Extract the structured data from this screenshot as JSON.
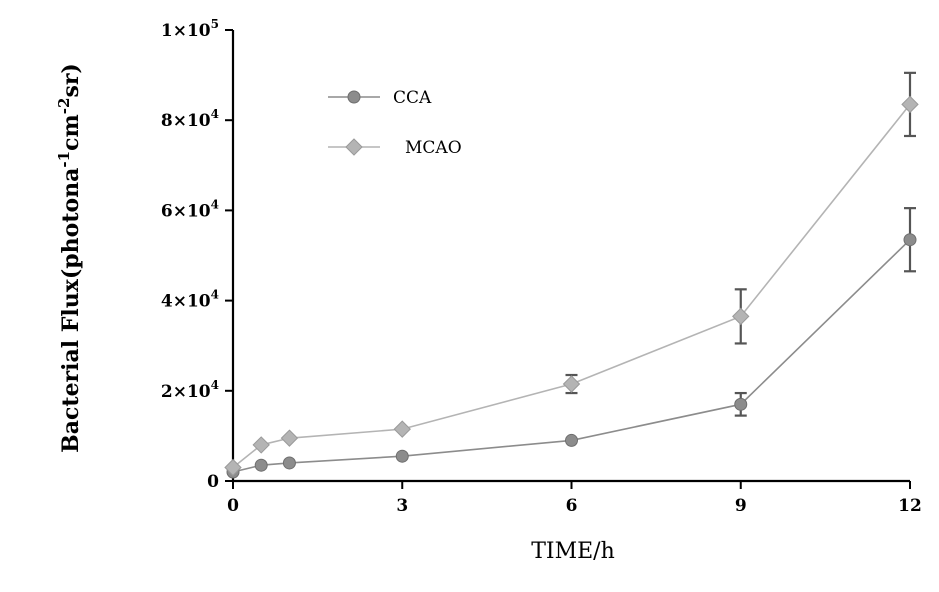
{
  "chart_data": {
    "type": "line",
    "xlabel": "TIME/h",
    "ylabel_parts": [
      "Bacterial Flux(photona",
      "-1",
      "cm",
      "-2",
      "sr)"
    ],
    "xlim": [
      0,
      12
    ],
    "ylim": [
      0,
      100000
    ],
    "x_ticks": [
      {
        "value": 0,
        "label": "0"
      },
      {
        "value": 3,
        "label": "3"
      },
      {
        "value": 6,
        "label": "6"
      },
      {
        "value": 9,
        "label": "9"
      },
      {
        "value": 12,
        "label": "12"
      }
    ],
    "y_ticks": [
      {
        "value": 0,
        "mant": "0",
        "exp": ""
      },
      {
        "value": 20000,
        "mant": "2×10",
        "exp": "4"
      },
      {
        "value": 40000,
        "mant": "4×10",
        "exp": "4"
      },
      {
        "value": 60000,
        "mant": "6×10",
        "exp": "4"
      },
      {
        "value": 80000,
        "mant": "8×10",
        "exp": "4"
      },
      {
        "value": 100000,
        "mant": "1×10",
        "exp": "5"
      }
    ],
    "grid": false,
    "legend_position": "top-left",
    "series": [
      {
        "name": "CCA",
        "marker": "circle",
        "color": "#8c8c8c",
        "x": [
          0,
          0.5,
          1,
          3,
          6,
          9,
          12
        ],
        "y": [
          2000,
          3500,
          4000,
          5500,
          9000,
          17000,
          53500
        ],
        "err": [
          0,
          0,
          0,
          0,
          0,
          2500,
          7000
        ]
      },
      {
        "name": "MCAO",
        "marker": "diamond",
        "color": "#b4b4b4",
        "x": [
          0,
          0.5,
          1,
          3,
          6,
          9,
          12
        ],
        "y": [
          3000,
          8000,
          9500,
          11500,
          21500,
          36500,
          83500
        ],
        "err": [
          0,
          0,
          0,
          0,
          2000,
          6000,
          7000
        ]
      }
    ]
  }
}
